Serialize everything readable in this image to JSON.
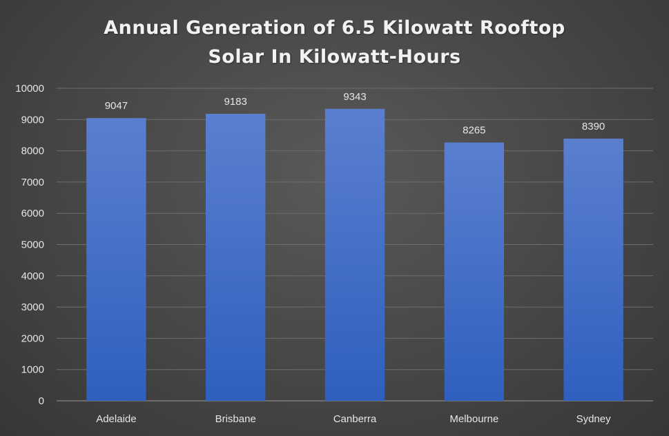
{
  "chart_data": {
    "type": "bar",
    "title_lines": [
      "Annual Generation of 6.5 Kilowatt Rooftop",
      "Solar In Kilowatt-Hours"
    ],
    "categories": [
      "Adelaide",
      "Brisbane",
      "Canberra",
      "Melbourne",
      "Sydney"
    ],
    "values": [
      9047,
      9183,
      9343,
      8265,
      8390
    ],
    "data_labels": [
      "9047",
      "9183",
      "9343",
      "8265",
      "8390"
    ],
    "y_ticks": [
      0,
      1000,
      2000,
      3000,
      4000,
      5000,
      6000,
      7000,
      8000,
      9000,
      10000
    ],
    "y_tick_labels": [
      "0",
      "1000",
      "2000",
      "3000",
      "4000",
      "5000",
      "6000",
      "7000",
      "8000",
      "9000",
      "10000"
    ],
    "ylim": [
      0,
      10000
    ],
    "xlabel": "",
    "ylabel": "",
    "grid": true,
    "legend": "none",
    "colors": {
      "bar_top": "#5b7fcf",
      "bar_bottom": "#2f5fbf",
      "gridline": "#6e6e6e",
      "text": "#e6e6e6"
    }
  }
}
